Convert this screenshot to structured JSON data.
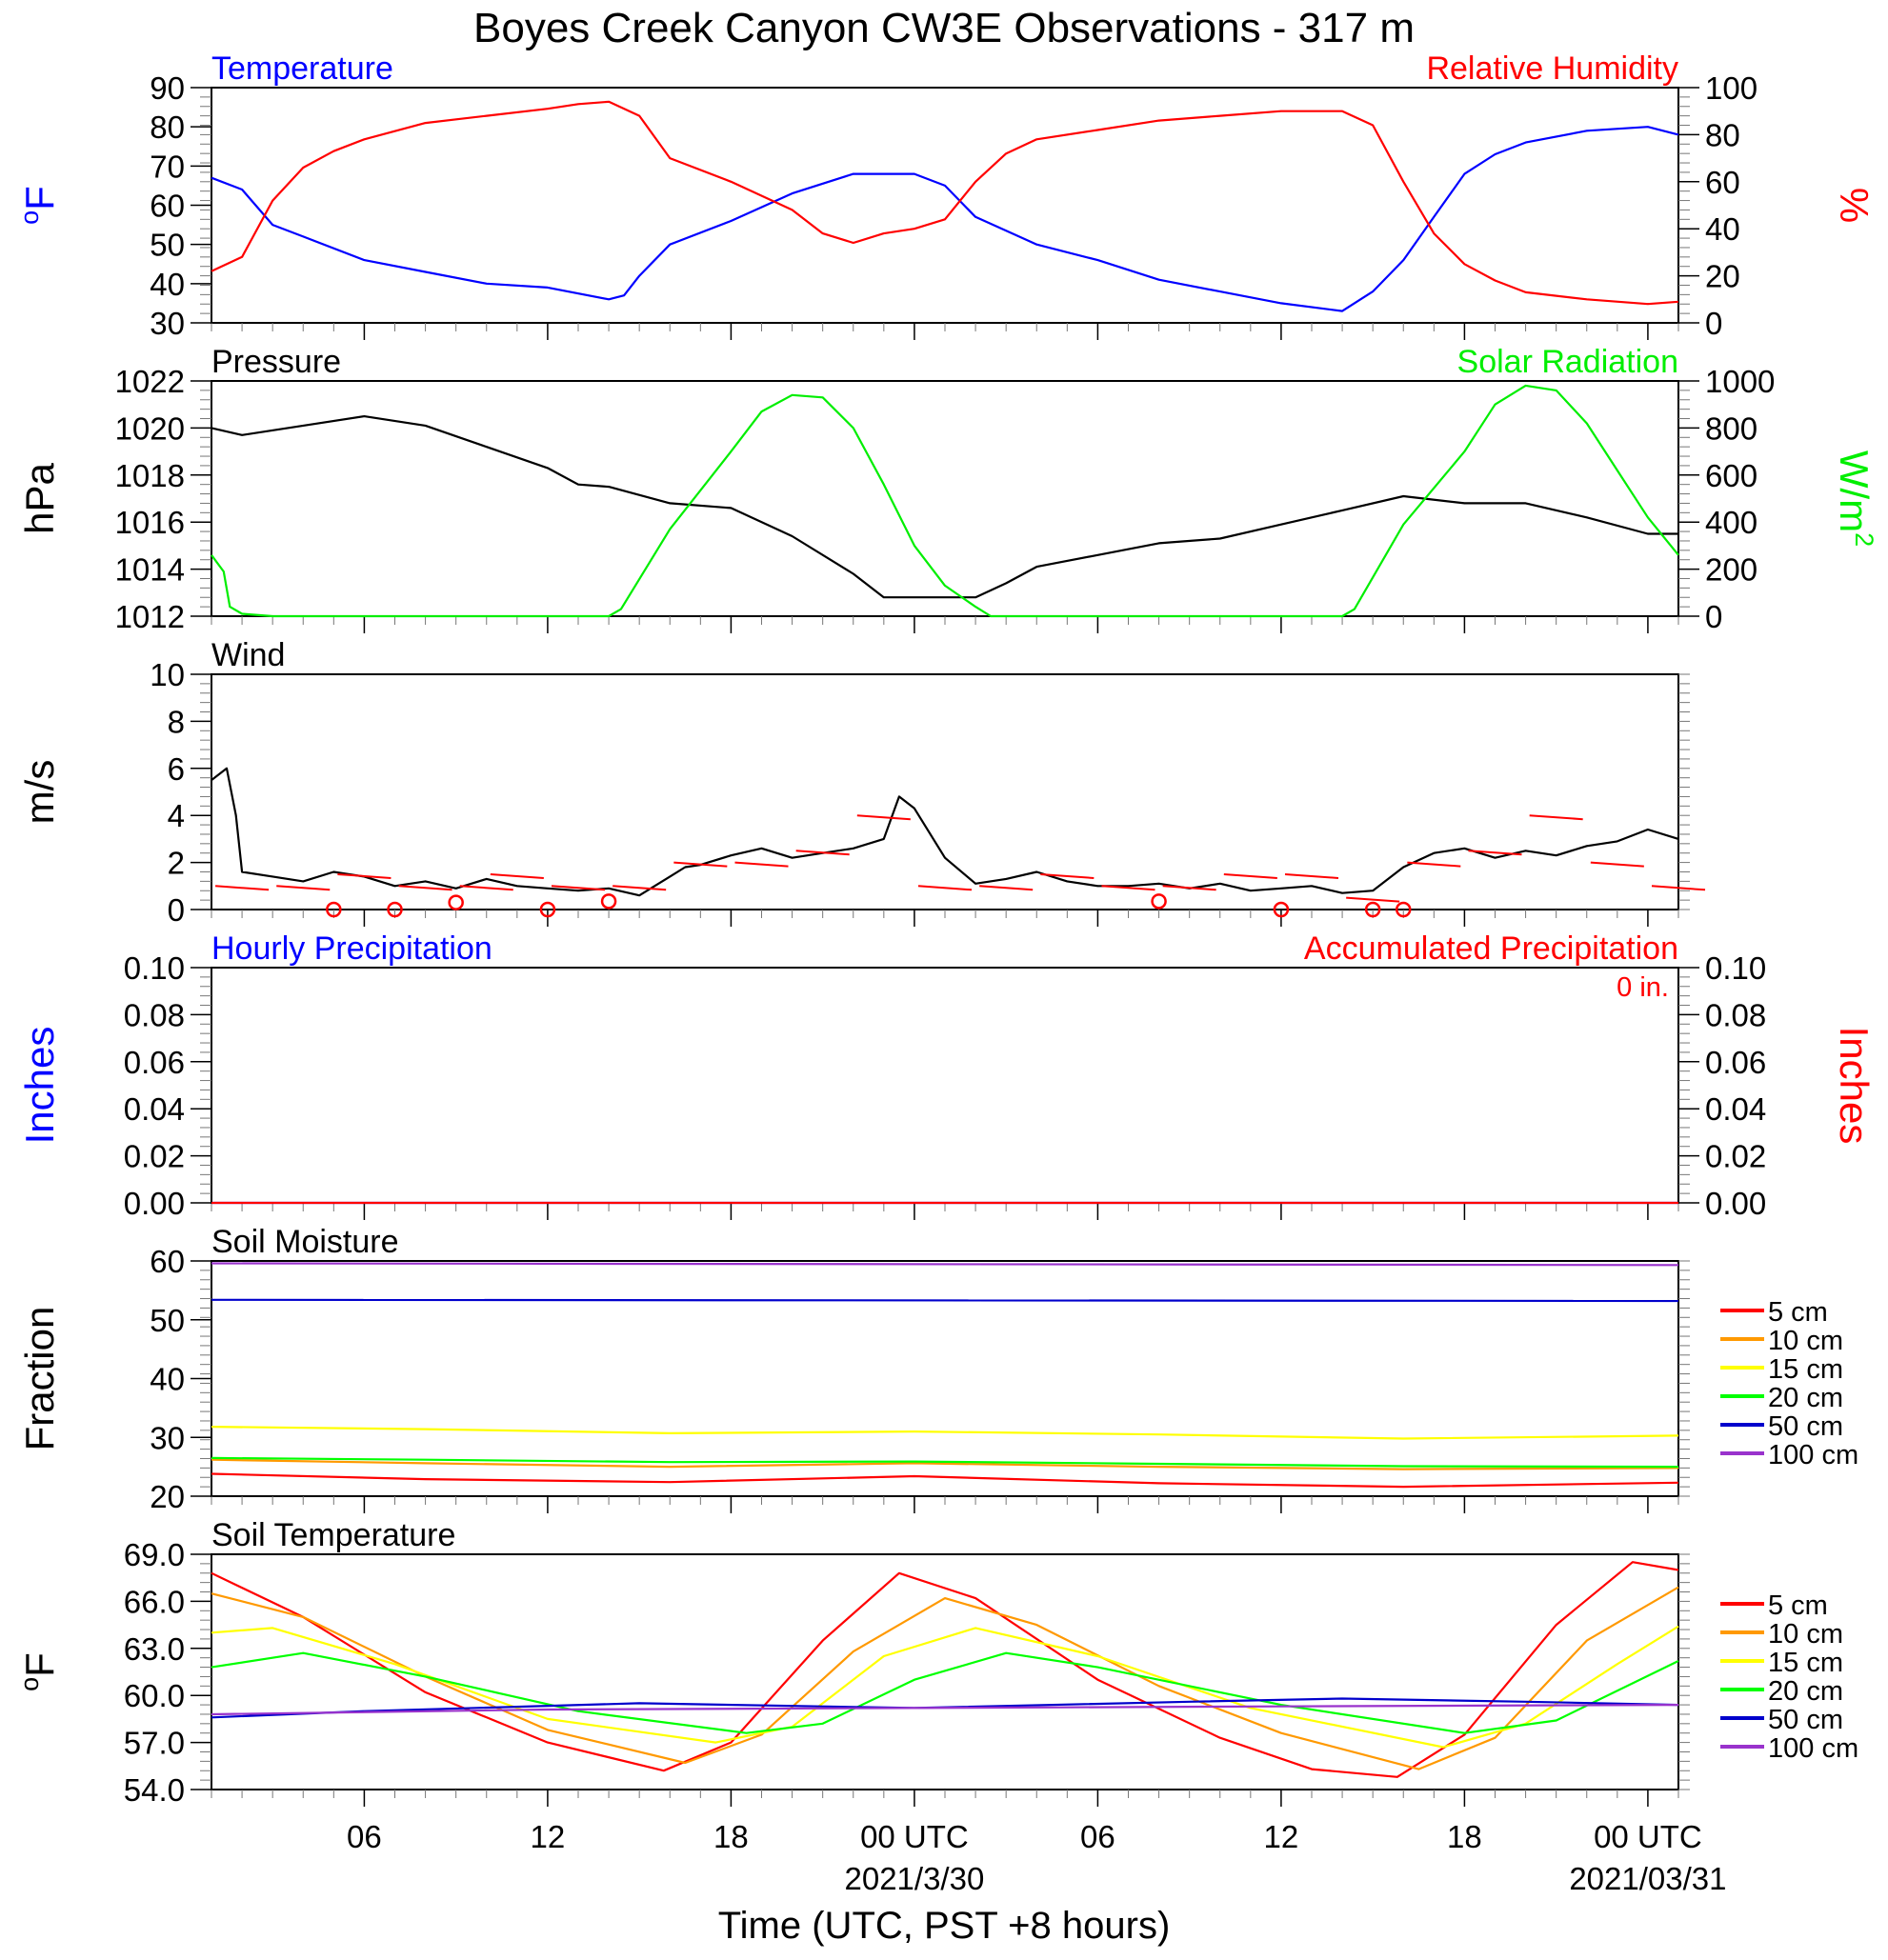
{
  "title": "Boyes Creek Canyon CW3E Observations - 317 m",
  "x_axis": {
    "label": "Time (UTC, PST +8 hours)",
    "ticks": [
      {
        "hour": 6,
        "label": "06",
        "sub": ""
      },
      {
        "hour": 12,
        "label": "12",
        "sub": ""
      },
      {
        "hour": 18,
        "label": "18",
        "sub": ""
      },
      {
        "hour": 24,
        "label": "00 UTC",
        "sub": "2021/3/30"
      },
      {
        "hour": 30,
        "label": "06",
        "sub": ""
      },
      {
        "hour": 36,
        "label": "12",
        "sub": ""
      },
      {
        "hour": 42,
        "label": "18",
        "sub": ""
      },
      {
        "hour": 48,
        "label": "00 UTC",
        "sub": "2021/03/31"
      }
    ],
    "range_hours": [
      1,
      49
    ]
  },
  "colors": {
    "blue": "#0000ff",
    "red": "#ff0000",
    "green": "#00ee00",
    "black": "#000000",
    "orange": "#ff9900",
    "yellow": "#ffff00",
    "soil_green": "#00ff00",
    "soil_blue": "#0000cc",
    "purple": "#9933cc"
  },
  "soil_legend": [
    "5 cm",
    "10 cm",
    "15 cm",
    "20 cm",
    "50 cm",
    "100 cm"
  ],
  "chart_data": [
    {
      "id": "temp-rh",
      "type": "line",
      "left_title": "Temperature",
      "right_title": "Relative Humidity",
      "ylabel_left": "oF",
      "ylabel_right": "%",
      "ylim_left": [
        30,
        90
      ],
      "ylim_right": [
        0,
        100
      ],
      "yticks_left": [
        "30",
        "40",
        "50",
        "60",
        "70",
        "80",
        "90"
      ],
      "yticks_right": [
        "0",
        "20",
        "40",
        "60",
        "80",
        "100"
      ],
      "series": [
        {
          "name": "Temperature",
          "axis": "left",
          "x": [
            1,
            2,
            3,
            4,
            6,
            8,
            10,
            12,
            14,
            14.5,
            15,
            16,
            18,
            20,
            22,
            24,
            25,
            26,
            28,
            30,
            32,
            34,
            36,
            38,
            39,
            40,
            41,
            42,
            43,
            44,
            46,
            48,
            49
          ],
          "y": [
            67,
            64,
            55,
            52,
            46,
            43,
            40,
            39,
            36,
            37,
            42,
            50,
            56,
            63,
            68,
            68,
            65,
            57,
            50,
            46,
            41,
            38,
            35,
            33,
            38,
            46,
            57,
            68,
            73,
            76,
            79,
            80,
            78
          ]
        },
        {
          "name": "Relative Humidity",
          "axis": "right",
          "x": [
            1,
            2,
            3,
            4,
            5,
            6,
            8,
            10,
            12,
            13,
            14,
            15,
            16,
            18,
            20,
            21,
            22,
            23,
            24,
            25,
            26,
            27,
            28,
            30,
            32,
            34,
            36,
            38,
            39,
            40,
            41,
            42,
            43,
            44,
            46,
            48,
            49
          ],
          "y": [
            22,
            28,
            52,
            66,
            73,
            78,
            85,
            88,
            91,
            93,
            94,
            88,
            70,
            60,
            48,
            38,
            34,
            38,
            40,
            44,
            60,
            72,
            78,
            82,
            86,
            88,
            90,
            90,
            84,
            60,
            38,
            25,
            18,
            13,
            10,
            8,
            9
          ]
        }
      ]
    },
    {
      "id": "pressure-solar",
      "type": "line",
      "left_title": "Pressure",
      "right_title": "Solar Radiation",
      "ylabel_left": "hPa",
      "ylabel_right": "W/m2",
      "ylim_left": [
        1012,
        1022
      ],
      "ylim_right": [
        0,
        1000
      ],
      "yticks_left": [
        "1012",
        "1014",
        "1016",
        "1018",
        "1020",
        "1022"
      ],
      "yticks_right": [
        "0",
        "200",
        "400",
        "600",
        "800",
        "1000"
      ],
      "series": [
        {
          "name": "Pressure",
          "axis": "left",
          "x": [
            1,
            2,
            4,
            6,
            8,
            10,
            12,
            13,
            14,
            16,
            18,
            20,
            22,
            23,
            24,
            25,
            26,
            27,
            28,
            30,
            32,
            34,
            36,
            38,
            40,
            42,
            44,
            46,
            48,
            49
          ],
          "y": [
            1020,
            1019.7,
            1020.1,
            1020.5,
            1020.1,
            1019.2,
            1018.3,
            1017.6,
            1017.5,
            1016.8,
            1016.6,
            1015.4,
            1013.8,
            1012.8,
            1012.8,
            1012.8,
            1012.8,
            1013.4,
            1014.1,
            1014.6,
            1015.1,
            1015.3,
            1015.9,
            1016.5,
            1017.1,
            1016.8,
            1016.8,
            1016.2,
            1015.5,
            1015.5
          ]
        },
        {
          "name": "Solar Radiation",
          "axis": "right",
          "x": [
            1,
            1.4,
            1.6,
            2,
            3,
            5,
            10,
            14,
            14.4,
            16,
            18,
            19,
            20,
            21,
            22,
            23,
            24,
            25,
            26,
            26.5,
            30,
            38,
            38.4,
            40,
            42,
            43,
            44,
            45,
            46,
            47,
            48,
            49
          ],
          "y": [
            260,
            190,
            40,
            10,
            0,
            0,
            0,
            0,
            30,
            370,
            700,
            870,
            940,
            930,
            800,
            560,
            300,
            130,
            40,
            0,
            0,
            0,
            30,
            390,
            700,
            900,
            980,
            960,
            820,
            620,
            420,
            260
          ]
        }
      ]
    },
    {
      "id": "wind",
      "type": "line",
      "left_title": "Wind",
      "ylabel_left": "m/s",
      "ylim_left": [
        0,
        10
      ],
      "yticks_left": [
        "0",
        "2",
        "4",
        "6",
        "8",
        "10"
      ],
      "series": [
        {
          "name": "Wind",
          "axis": "left",
          "x": [
            1,
            1.5,
            1.8,
            2,
            3,
            4,
            5,
            6,
            7,
            8,
            9,
            10,
            11,
            12,
            13,
            14,
            15,
            16,
            16.5,
            17,
            18,
            19,
            20,
            21,
            22,
            23,
            23.5,
            24,
            25,
            26,
            27,
            28,
            29,
            30,
            31,
            32,
            33,
            34,
            35,
            36,
            37,
            38,
            39,
            40,
            41,
            42,
            43,
            44,
            45,
            46,
            47,
            48,
            49
          ],
          "y": [
            5.5,
            6,
            4,
            1.6,
            1.4,
            1.2,
            1.6,
            1.4,
            1,
            1.2,
            0.9,
            1.3,
            1,
            0.9,
            0.8,
            0.9,
            0.6,
            1.4,
            1.8,
            1.9,
            2.3,
            2.6,
            2.2,
            2.4,
            2.6,
            3,
            4.8,
            4.3,
            2.2,
            1.1,
            1.3,
            1.6,
            1.2,
            1,
            1,
            1.1,
            0.9,
            1.1,
            0.8,
            0.9,
            1,
            0.7,
            0.8,
            1.8,
            2.4,
            2.6,
            2.2,
            2.5,
            2.3,
            2.7,
            2.9,
            3.4,
            3
          ]
        },
        {
          "name": "Wind Barbs",
          "axis": "left",
          "x": [
            2,
            4,
            6,
            8,
            10,
            11,
            13,
            15,
            17,
            19,
            21,
            23,
            25,
            27,
            29,
            31,
            33,
            35,
            37,
            39,
            41,
            43,
            45,
            47,
            49
          ],
          "y": [
            1,
            1,
            1.5,
            1,
            1,
            1.5,
            1,
            1,
            2,
            2,
            2.5,
            4,
            1,
            1,
            1.5,
            1,
            1,
            1.5,
            1.5,
            0.5,
            2,
            2.5,
            4,
            2,
            1
          ]
        },
        {
          "name": "Calm",
          "axis": "left",
          "x": [
            5,
            7,
            9,
            12,
            14,
            32,
            36,
            39,
            40
          ],
          "y": [
            0,
            0,
            0.3,
            0,
            0.35,
            0.35,
            0,
            0,
            0
          ]
        }
      ]
    },
    {
      "id": "precip",
      "type": "line",
      "left_title": "Hourly Precipitation",
      "right_title": "Accumulated Precipitation",
      "annotation": "0 in.",
      "ylabel_left": "Inches",
      "ylabel_right": "Inches",
      "ylim_left": [
        0,
        0.1
      ],
      "ylim_right": [
        0,
        0.1
      ],
      "yticks_left": [
        "0.00",
        "0.02",
        "0.04",
        "0.06",
        "0.08",
        "0.10"
      ],
      "yticks_right": [
        "0.00",
        "0.02",
        "0.04",
        "0.06",
        "0.08",
        "0.10"
      ],
      "series": [
        {
          "name": "Hourly Precipitation",
          "axis": "left",
          "x": [
            1,
            49
          ],
          "y": [
            0,
            0
          ]
        },
        {
          "name": "Accumulated Precipitation",
          "axis": "right",
          "x": [
            1,
            49
          ],
          "y": [
            0,
            0
          ]
        }
      ]
    },
    {
      "id": "soil-moisture",
      "type": "line",
      "left_title": "Soil Moisture",
      "ylabel_left": "Fraction",
      "ylim_left": [
        20,
        60
      ],
      "yticks_left": [
        "20",
        "30",
        "40",
        "50",
        "60"
      ],
      "series": [
        {
          "name": "5 cm",
          "axis": "left",
          "x": [
            1,
            8,
            16,
            24,
            32,
            40,
            49
          ],
          "y": [
            23.8,
            22.9,
            22.4,
            23.4,
            22.2,
            21.6,
            22.3
          ]
        },
        {
          "name": "10 cm",
          "axis": "left",
          "x": [
            1,
            8,
            16,
            24,
            32,
            40,
            49
          ],
          "y": [
            26.2,
            25.6,
            25,
            25.6,
            25,
            24.6,
            24.8
          ]
        },
        {
          "name": "15 cm",
          "axis": "left",
          "x": [
            1,
            8,
            16,
            24,
            32,
            40,
            49
          ],
          "y": [
            31.8,
            31.4,
            30.7,
            31,
            30.5,
            29.8,
            30.3
          ]
        },
        {
          "name": "20 cm",
          "axis": "left",
          "x": [
            1,
            8,
            16,
            24,
            32,
            40,
            49
          ],
          "y": [
            26.5,
            26.2,
            25.8,
            25.9,
            25.5,
            25.1,
            25
          ]
        },
        {
          "name": "50 cm",
          "axis": "left",
          "x": [
            1,
            49
          ],
          "y": [
            53.4,
            53.2
          ]
        },
        {
          "name": "100 cm",
          "axis": "left",
          "x": [
            1,
            49
          ],
          "y": [
            59.6,
            59.3
          ]
        }
      ]
    },
    {
      "id": "soil-temperature",
      "type": "line",
      "left_title": "Soil Temperature",
      "ylabel_left": "oF",
      "ylim_left": [
        54,
        69
      ],
      "yticks_left": [
        "54.0",
        "57.0",
        "60.0",
        "63.0",
        "66.0",
        "69.0"
      ],
      "series": [
        {
          "name": "5 cm",
          "axis": "left",
          "x": [
            1,
            4,
            8,
            12,
            15.8,
            18,
            21,
            23.5,
            26,
            30,
            34,
            37,
            39.8,
            42,
            45,
            47.5,
            49
          ],
          "y": [
            67.8,
            65,
            60.2,
            57,
            55.2,
            57,
            63.5,
            67.8,
            66.2,
            61,
            57.3,
            55.3,
            54.8,
            57.5,
            64.5,
            68.5,
            68
          ]
        },
        {
          "name": "10 cm",
          "axis": "left",
          "x": [
            1,
            4,
            8,
            12,
            16.5,
            19,
            22,
            25,
            28,
            32,
            36,
            40.5,
            43,
            46,
            49
          ],
          "y": [
            66.5,
            65,
            61.2,
            57.8,
            55.7,
            57.5,
            62.8,
            66.2,
            64.5,
            60.6,
            57.6,
            55.3,
            57.3,
            63.5,
            66.9
          ]
        },
        {
          "name": "15 cm",
          "axis": "left",
          "x": [
            1,
            3,
            7,
            12,
            17.5,
            20,
            23,
            26,
            30,
            35,
            41.3,
            44,
            47,
            49
          ],
          "y": [
            64,
            64.3,
            62,
            58.5,
            57,
            58,
            62.5,
            64.3,
            62.5,
            59.2,
            56.7,
            58.2,
            62,
            64.4
          ]
        },
        {
          "name": "20 cm",
          "axis": "left",
          "x": [
            1,
            4,
            8,
            13,
            18.5,
            21,
            24,
            27,
            30,
            36,
            42,
            45,
            49
          ],
          "y": [
            61.8,
            62.7,
            61.2,
            59,
            57.6,
            58.2,
            61,
            62.7,
            61.8,
            59.4,
            57.6,
            58.4,
            62.2
          ]
        },
        {
          "name": "50 cm",
          "axis": "left",
          "x": [
            1,
            6,
            15,
            24,
            33,
            38,
            44,
            49
          ],
          "y": [
            58.6,
            59,
            59.5,
            59.2,
            59.6,
            59.8,
            59.6,
            59.4
          ]
        },
        {
          "name": "100 cm",
          "axis": "left",
          "x": [
            1,
            12,
            24,
            36,
            49
          ],
          "y": [
            58.8,
            59.1,
            59.2,
            59.3,
            59.4
          ]
        }
      ]
    }
  ]
}
